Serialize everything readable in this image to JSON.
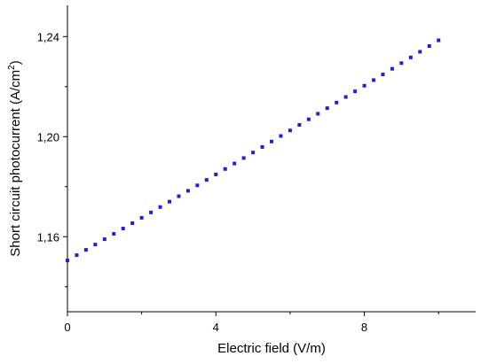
{
  "chart_data": {
    "type": "scatter",
    "title": "",
    "xlabel": "Electric field (V/m)",
    "ylabel_main": "Short circuit photocurrent (A/cm",
    "ylabel_sup": "2",
    "ylabel_tail": ")",
    "xlim": [
      0,
      11
    ],
    "ylim": [
      1.13,
      1.2525
    ],
    "x_ticks": [
      {
        "value": 0,
        "label": "0"
      },
      {
        "value": 4,
        "label": "4"
      },
      {
        "value": 8,
        "label": "8"
      }
    ],
    "y_ticks": [
      {
        "value": 1.16,
        "label": "1,16"
      },
      {
        "value": 1.2,
        "label": "1,20"
      },
      {
        "value": 1.24,
        "label": "1,24"
      }
    ],
    "series": [
      {
        "marker": "square",
        "color": "#1f1fd6",
        "x_start": 0,
        "x_end": 10,
        "x_step": 0.25,
        "y_at_start": 1.1505,
        "y_at_end": 1.2385,
        "curvature": 0.0034
      }
    ],
    "grid": false,
    "legend": "none"
  }
}
